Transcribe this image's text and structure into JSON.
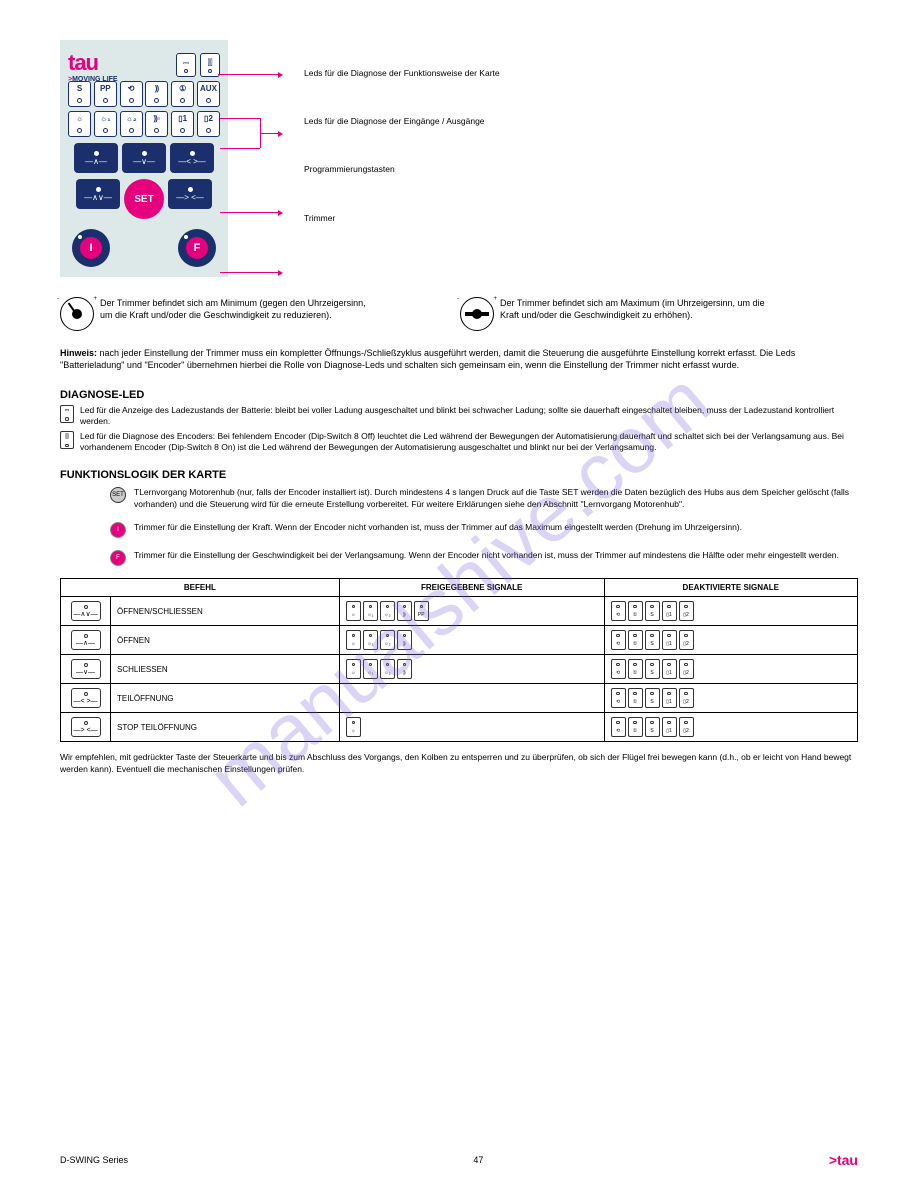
{
  "theme": {
    "magenta": "#e6007e",
    "navy": "#1a2f6b",
    "panel_bg": "#dde8e8"
  },
  "watermark": "manualshive.com",
  "panel": {
    "logo_main": "tau",
    "logo_sub_prefix": ">",
    "logo_sub": "MOVING LIFE",
    "top_icons": {
      "battery": "⎓",
      "encoder": "⫿⫿"
    },
    "row1": [
      "S",
      "PP",
      "⟲",
      "⸩",
      "①",
      "AUX"
    ],
    "row2": [
      "☼",
      "☼₁",
      "☼₂",
      "⸩◦",
      "▯1",
      "▯2"
    ],
    "blue_buttons": {
      "open": "—∧—",
      "close": "—∨—",
      "ped": "—< >—",
      "openclose": "—∧∨—",
      "pedstop": "—> <—"
    },
    "set": "SET",
    "trimmers": {
      "left": "I",
      "right": "F"
    }
  },
  "callouts": {
    "c1": "Leds für die Diagnose der Funktionsweise der Karte",
    "c2": "Leds für die Diagnose der Eingänge / Ausgänge",
    "c3": "Programmierungstasten",
    "c4": "Trimmer"
  },
  "trimmer_section": {
    "item1": "Der Trimmer befindet sich am Minimum (gegen den Uhrzeigersinn, um die Kraft und/oder die Geschwindigkeit zu reduzieren).",
    "item2": "Der Trimmer befindet sich am Maximum (im Uhrzeigersinn, um die Kraft und/oder die Geschwindigkeit zu erhöhen).",
    "note_bold": "Hinweis:",
    "note": " nach jeder Einstellung der Trimmer muss ein kompletter Öffnungs-/Schließzyklus ausgeführt werden, damit die Steuerung die ausgeführte Einstellung korrekt erfasst. Die Leds \"Batterieladung\" und \"Encoder\" übernehmen hierbei die Rolle von Diagnose-Leds und schalten sich gemeinsam ein, wenn die Einstellung der Trimmer nicht erfasst wurde."
  },
  "led_block": {
    "title": "DIAGNOSE-LED",
    "items": [
      {
        "icon": "⎓",
        "text": "Led für die Anzeige des Ladezustands der Batterie: bleibt bei voller Ladung ausgeschaltet und blinkt bei schwacher Ladung; sollte sie dauerhaft eingeschaltet bleiben, muss der Ladezustand kontrolliert werden."
      },
      {
        "icon": "⫿⫿",
        "text": "Led für die Diagnose des Encoders: Bei fehlendem Encoder (Dip-Switch 8 Off) leuchtet die Led während der Bewegungen der Automatisierung dauerhaft und schaltet sich bei der Verlangsamung aus. Bei vorhandenem Encoder (Dip-Switch 8 On) ist die Led während der Bewegungen der Automatisierung ausgeschaltet und blinkt nur bei der Verlangsamung."
      }
    ]
  },
  "logic_block": {
    "title": "FUNKTIONSLOGIK DER KARTE",
    "items": [
      {
        "key": "SET",
        "text": "TLernvorgang Motorenhub (nur, falls der Encoder installiert ist). Durch mindestens 4 s langen Druck auf die Taste SET werden die Daten bezüglich des Hubs aus dem Speicher gelöscht (falls vorhanden) und die Steuerung wird für die erneute Erstellung vorbereitet. Für weitere Erklärungen siehe den Abschnitt \"Lernvorgang Motorenhub\"."
      },
      {
        "key": "I",
        "text": "Trimmer für die Einstellung der Kraft. Wenn der Encoder nicht vorhanden ist, muss der Trimmer auf das Maximum eingestellt werden (Drehung im Uhrzeigersinn)."
      },
      {
        "key": "F",
        "text": "Trimmer für die Einstellung der Geschwindigkeit bei der Verlangsamung. Wenn der Encoder nicht vorhanden ist, muss der Trimmer auf mindestens die Hälfte oder mehr eingestellt werden."
      }
    ]
  },
  "table": {
    "headers": [
      "BEFEHL",
      "",
      "FREIGEGEBENE SIGNALE",
      "DEAKTIVIERTE SIGNALE"
    ],
    "rows": [
      {
        "btn": "—∧∨—",
        "name": "ÖFFNEN/SCHLIESSEN",
        "icons_on_count": 5,
        "icons_off_count": 5
      },
      {
        "btn": "—∧—",
        "name": "ÖFFNEN",
        "icons_on_count": 4,
        "icons_off_count": 5
      },
      {
        "btn": "—∨—",
        "name": "SCHLIESSEN",
        "icons_on_count": 4,
        "icons_off_count": 5
      },
      {
        "btn": "—< >—",
        "name": "TEILÖFFNUNG",
        "icons_on_count": 0,
        "icons_off_count": 5
      },
      {
        "btn": "—> <—",
        "name": "STOP TEILÖFFNUNG",
        "icons_on_count": 1,
        "icons_off_count": 5
      }
    ]
  },
  "footnote": "Wir empfehlen, mit gedrückter Taste der Steuerkarte und bis zum Abschluss des Vorgangs, den Kolben zu entsperren und zu überprüfen, ob sich der Flügel frei bewegen kann (d.h., ob er leicht von Hand bewegt werden kann). Eventuell die mechanischen Einstellungen prüfen.",
  "footer": {
    "left": "D-SWING Series",
    "page": "47",
    "logo": ">tau"
  }
}
